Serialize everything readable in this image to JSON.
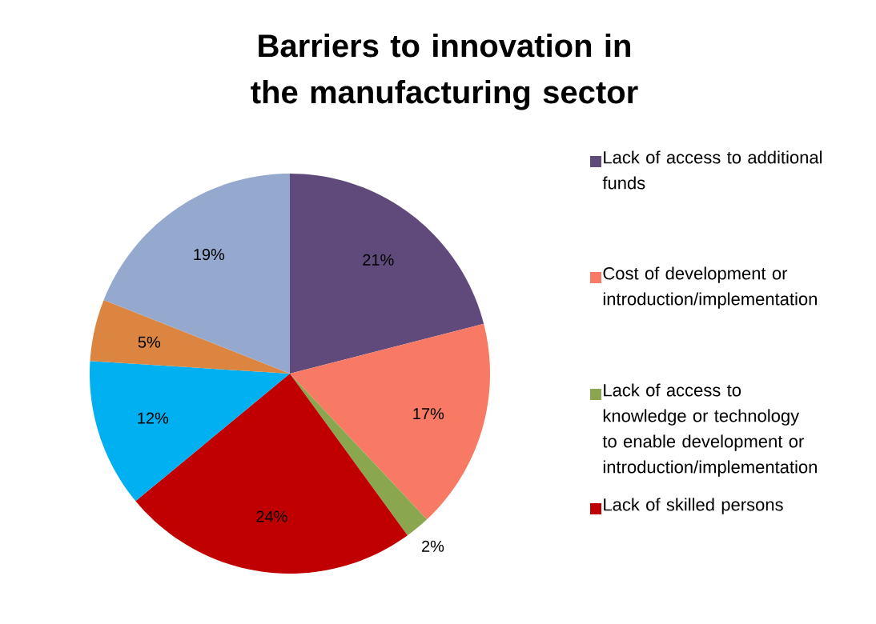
{
  "chart_data": {
    "type": "pie",
    "title": "Barriers to innovation in the manufacturing sector",
    "categories": [
      "Lack of access to additional funds",
      "Cost of development or introduction/implementation",
      "Lack of access to knowledge or technology to enable development or introduction/implementation",
      "Lack of skilled persons",
      null,
      null,
      null
    ],
    "values": [
      21,
      17,
      2,
      24,
      12,
      5,
      19
    ],
    "value_labels": [
      "21%",
      "17%",
      "2%",
      "24%",
      "12%",
      "5%",
      "19%"
    ],
    "colors": [
      "#604a7b",
      "#f87a64",
      "#8aa64e",
      "#c00000",
      "#00b0f0",
      "#dc8540",
      "#95a9cf"
    ],
    "legend": "right"
  }
}
